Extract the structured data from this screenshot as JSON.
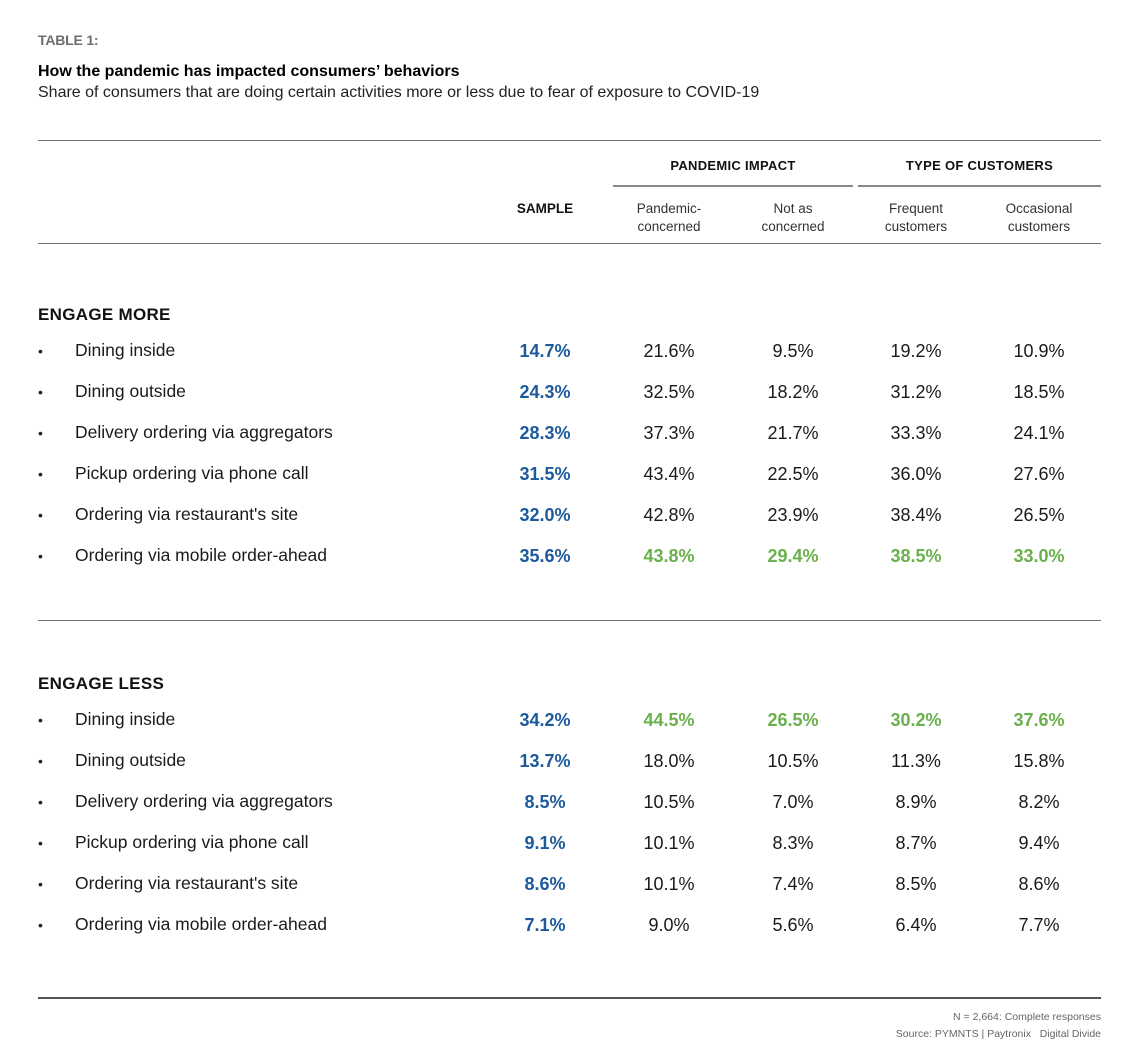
{
  "header": {
    "label": "TABLE 1:",
    "title": "How the pandemic has impacted consumers’ behaviors",
    "subtitle": "Share of consumers that are doing certain activities more or less due to fear of exposure to COVID-19"
  },
  "colors": {
    "sample": "#1c5a9c",
    "highlight": "#6ab04c",
    "text": "#1a1a1a"
  },
  "columns": {
    "groups": [
      "PANDEMIC IMPACT",
      "TYPE OF CUSTOMERS"
    ],
    "sample": "SAMPLE",
    "subheaders": [
      [
        "Pandemic-",
        "concerned"
      ],
      [
        "Not as",
        "concerned"
      ],
      [
        "Frequent",
        "customers"
      ],
      [
        "Occasional",
        "customers"
      ]
    ]
  },
  "sections": [
    {
      "title": "ENGAGE MORE",
      "rows": [
        {
          "label": "Dining inside",
          "values": [
            "14.7%",
            "21.6%",
            "9.5%",
            "19.2%",
            "10.9%"
          ],
          "highlight": false
        },
        {
          "label": "Dining outside",
          "values": [
            "24.3%",
            "32.5%",
            "18.2%",
            "31.2%",
            "18.5%"
          ],
          "highlight": false
        },
        {
          "label": "Delivery ordering via aggregators",
          "values": [
            "28.3%",
            "37.3%",
            "21.7%",
            "33.3%",
            "24.1%"
          ],
          "highlight": false
        },
        {
          "label": "Pickup ordering via phone call",
          "values": [
            "31.5%",
            "43.4%",
            "22.5%",
            "36.0%",
            "27.6%"
          ],
          "highlight": false
        },
        {
          "label": "Ordering via restaurant's site",
          "values": [
            "32.0%",
            "42.8%",
            "23.9%",
            "38.4%",
            "26.5%"
          ],
          "highlight": false
        },
        {
          "label": "Ordering via mobile order-ahead",
          "values": [
            "35.6%",
            "43.8%",
            "29.4%",
            "38.5%",
            "33.0%"
          ],
          "highlight": true
        }
      ]
    },
    {
      "title": "ENGAGE LESS",
      "rows": [
        {
          "label": "Dining inside",
          "values": [
            "34.2%",
            "44.5%",
            "26.5%",
            "30.2%",
            "37.6%"
          ],
          "highlight": true
        },
        {
          "label": "Dining outside",
          "values": [
            "13.7%",
            "18.0%",
            "10.5%",
            "11.3%",
            "15.8%"
          ],
          "highlight": false
        },
        {
          "label": "Delivery ordering via aggregators",
          "values": [
            "8.5%",
            "10.5%",
            "7.0%",
            "8.9%",
            "8.2%"
          ],
          "highlight": false
        },
        {
          "label": "Pickup ordering via phone call",
          "values": [
            "9.1%",
            "10.1%",
            "8.3%",
            "8.7%",
            "9.4%"
          ],
          "highlight": false
        },
        {
          "label": "Ordering via restaurant's site",
          "values": [
            "8.6%",
            "10.1%",
            "7.4%",
            "8.5%",
            "8.6%"
          ],
          "highlight": false
        },
        {
          "label": "Ordering via mobile order-ahead",
          "values": [
            "7.1%",
            "9.0%",
            "5.6%",
            "6.4%",
            "7.7%"
          ],
          "highlight": false
        }
      ]
    }
  ],
  "bullet": "•",
  "footer": {
    "note": "N = 2,664: Complete responses",
    "source": "Source: PYMNTS | Paytronix   Digital Divide"
  }
}
